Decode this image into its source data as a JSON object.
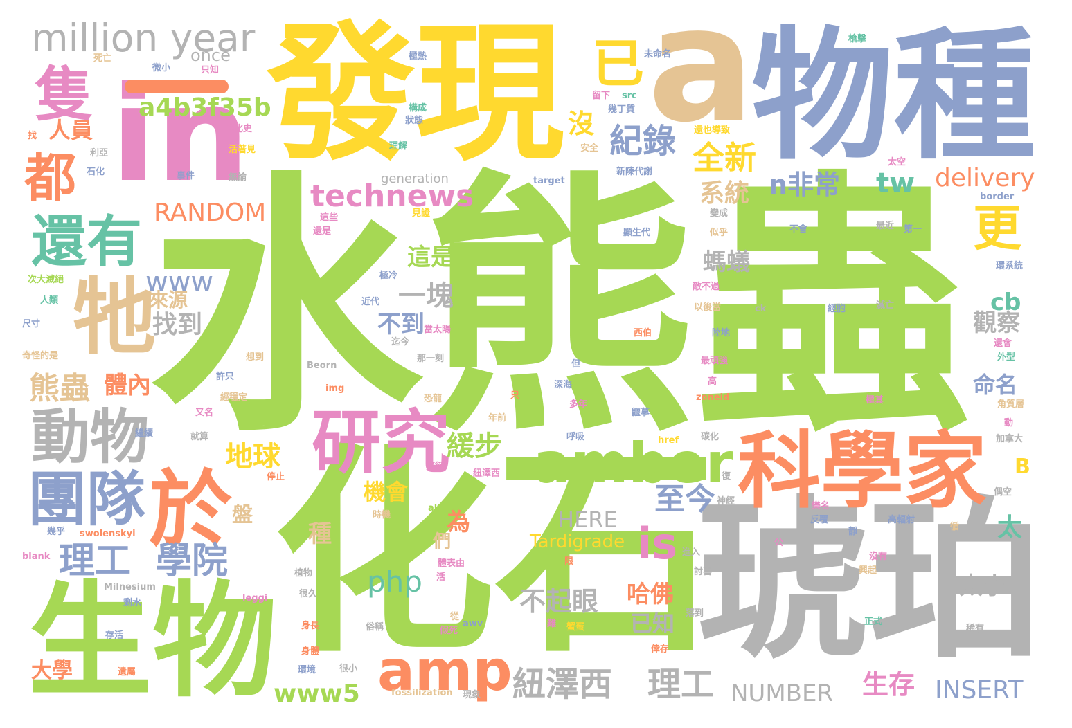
{
  "palette": {
    "green": "#a6d854",
    "gray": "#b3b3b3",
    "yellow": "#ffd92f",
    "tan": "#e5c494",
    "blue": "#8da0cb",
    "pink": "#e78ac3",
    "orange": "#fc8d62",
    "teal": "#66c2a5"
  },
  "words": [
    {
      "text": "水熊蟲",
      "color": "green",
      "weight": 1.0
    },
    {
      "text": "化石",
      "color": "green",
      "weight": 0.8
    },
    {
      "text": "琥珀",
      "color": "gray",
      "weight": 0.6
    },
    {
      "text": "發現",
      "color": "yellow",
      "weight": 0.55
    },
    {
      "text": "a",
      "color": "tan",
      "weight": 0.55
    },
    {
      "text": "物種",
      "color": "blue",
      "weight": 0.48
    },
    {
      "text": "in",
      "color": "pink",
      "weight": 0.5
    },
    {
      "text": "生物",
      "color": "green",
      "weight": 0.4
    },
    {
      "text": "科學家",
      "color": "orange",
      "weight": 0.3
    },
    {
      "text": "於",
      "color": "orange",
      "weight": 0.3
    },
    {
      "text": "牠",
      "color": "tan",
      "weight": 0.3
    },
    {
      "text": "研究",
      "color": "pink",
      "weight": 0.25
    },
    {
      "text": "amber",
      "color": "green",
      "weight": 0.2
    },
    {
      "text": "amp",
      "color": "orange",
      "weight": 0.2
    },
    {
      "text": "動物",
      "color": "gray",
      "weight": 0.2
    },
    {
      "text": "團隊",
      "color": "blue",
      "weight": 0.2
    },
    {
      "text": "都",
      "color": "orange",
      "weight": 0.2
    },
    {
      "text": "隻",
      "color": "pink",
      "weight": 0.2
    },
    {
      "text": "還有",
      "color": "teal",
      "weight": 0.2
    },
    {
      "text": "million year",
      "color": "gray",
      "weight": 0.17
    },
    {
      "text": "已",
      "color": "yellow",
      "weight": 0.2
    },
    {
      "text": "更",
      "color": "yellow",
      "weight": 0.17
    },
    {
      "text": "is",
      "color": "pink",
      "weight": 0.15
    },
    {
      "text": "technews",
      "color": "pink",
      "weight": 0.14
    },
    {
      "text": "a4b3f35b",
      "color": "green",
      "weight": 0.12
    },
    {
      "text": "RANDOM",
      "color": "orange",
      "weight": 0.12
    },
    {
      "text": "www",
      "color": "blue",
      "weight": 0.12
    },
    {
      "text": "紀錄",
      "color": "blue",
      "weight": 0.12
    },
    {
      "text": "全新",
      "color": "yellow",
      "weight": 0.12
    },
    {
      "text": "沒",
      "color": "yellow",
      "weight": 0.1
    },
    {
      "text": "人員",
      "color": "orange",
      "weight": 0.1
    },
    {
      "text": "n非常",
      "color": "blue",
      "weight": 0.12
    },
    {
      "text": "tw",
      "color": "teal",
      "weight": 0.12
    },
    {
      "text": "delivery",
      "color": "orange",
      "weight": 0.12
    },
    {
      "text": "系統",
      "color": "tan",
      "weight": 0.1
    },
    {
      "text": "螞蟻",
      "color": "gray",
      "weight": 0.1
    },
    {
      "text": "這是",
      "color": "green",
      "weight": 0.08
    },
    {
      "text": "一塊",
      "color": "gray",
      "weight": 0.1
    },
    {
      "text": "找到",
      "color": "gray",
      "weight": 0.1
    },
    {
      "text": "來源",
      "color": "tan",
      "weight": 0.08
    },
    {
      "text": "不到",
      "color": "blue",
      "weight": 0.08
    },
    {
      "text": "熊蟲",
      "color": "tan",
      "weight": 0.12
    },
    {
      "text": "體內",
      "color": "orange",
      "weight": 0.1
    },
    {
      "text": "地球",
      "color": "yellow",
      "weight": 0.12
    },
    {
      "text": "緩步",
      "color": "green",
      "weight": 0.12
    },
    {
      "text": "理工",
      "color": "blue",
      "weight": 0.14
    },
    {
      "text": "學院",
      "color": "blue",
      "weight": 0.14
    },
    {
      "text": "至今",
      "color": "blue",
      "weight": 0.12
    },
    {
      "text": "php",
      "color": "teal",
      "weight": 0.12
    },
    {
      "text": "機會",
      "color": "yellow",
      "weight": 0.1
    },
    {
      "text": "HERE",
      "color": "gray",
      "weight": 0.1
    },
    {
      "text": "Tardigrade",
      "color": "yellow",
      "weight": 0.1
    },
    {
      "text": "為",
      "color": "orange",
      "weight": 0.1
    },
    {
      "text": "們",
      "color": "tan",
      "weight": 0.08
    },
    {
      "text": "種",
      "color": "tan",
      "weight": 0.1
    },
    {
      "text": "盤",
      "color": "tan",
      "weight": 0.1
    },
    {
      "text": "不起眼",
      "color": "gray",
      "weight": 0.12
    },
    {
      "text": "哈佛",
      "color": "orange",
      "weight": 0.1
    },
    {
      "text": "已知",
      "color": "gray",
      "weight": 0.1
    },
    {
      "text": "太小",
      "color": "gray",
      "weight": 0.1
    },
    {
      "text": "太",
      "color": "teal",
      "weight": 0.1
    },
    {
      "text": "觀察",
      "color": "gray",
      "weight": 0.1
    },
    {
      "text": "命名",
      "color": "blue",
      "weight": 0.1
    },
    {
      "text": "cb",
      "color": "teal",
      "weight": 0.1
    },
    {
      "text": "B",
      "color": "yellow",
      "weight": 0.1
    },
    {
      "text": "www5",
      "color": "green",
      "weight": 0.12
    },
    {
      "text": "紐澤西",
      "color": "gray",
      "weight": 0.14
    },
    {
      "text": "理工",
      "color": "gray",
      "weight": 0.14
    },
    {
      "text": "NUMBER",
      "color": "gray",
      "weight": 0.12
    },
    {
      "text": "生存",
      "color": "pink",
      "weight": 0.12
    },
    {
      "text": "INSERT",
      "color": "blue",
      "weight": 0.12
    },
    {
      "text": "大學",
      "color": "orange",
      "weight": 0.1
    },
    {
      "text": "once",
      "color": "gray",
      "weight": 0.06
    },
    {
      "text": "generation",
      "color": "gray",
      "weight": 0.05
    },
    {
      "text": "死亡",
      "color": "tan",
      "weight": 0.03
    },
    {
      "text": "微小",
      "color": "blue",
      "weight": 0.03
    },
    {
      "text": "只知",
      "color": "pink",
      "weight": 0.03
    },
    {
      "text": "極熱",
      "color": "blue",
      "weight": 0.03
    },
    {
      "text": "未命名",
      "color": "blue",
      "weight": 0.03
    },
    {
      "text": "槍擊",
      "color": "teal",
      "weight": 0.03
    },
    {
      "text": "留下",
      "color": "pink",
      "weight": 0.03
    },
    {
      "text": "src",
      "color": "teal",
      "weight": 0.03
    },
    {
      "text": "幾丁質",
      "color": "blue",
      "weight": 0.03
    },
    {
      "text": "構成",
      "color": "teal",
      "weight": 0.03
    },
    {
      "text": "狀態",
      "color": "blue",
      "weight": 0.03
    },
    {
      "text": "找",
      "color": "orange",
      "weight": 0.03
    },
    {
      "text": "進化史",
      "color": "pink",
      "weight": 0.03
    },
    {
      "text": "活著見",
      "color": "yellow",
      "weight": 0.03
    },
    {
      "text": "理解",
      "color": "teal",
      "weight": 0.03
    },
    {
      "text": "安全",
      "color": "tan",
      "weight": 0.03
    },
    {
      "text": "還也導致",
      "color": "yellow",
      "weight": 0.03
    },
    {
      "text": "太空",
      "color": "pink",
      "weight": 0.03
    },
    {
      "text": "利亞",
      "color": "gray",
      "weight": 0.03
    },
    {
      "text": "石化",
      "color": "blue",
      "weight": 0.03
    },
    {
      "text": "事件",
      "color": "blue",
      "weight": 0.03
    },
    {
      "text": "無論",
      "color": "gray",
      "weight": 0.03
    },
    {
      "text": "新陳代謝",
      "color": "blue",
      "weight": 0.03
    },
    {
      "text": "target",
      "color": "blue",
      "weight": 0.03
    },
    {
      "text": "border",
      "color": "blue",
      "weight": 0.03
    },
    {
      "text": "見證",
      "color": "yellow",
      "weight": 0.03
    },
    {
      "text": "變成",
      "color": "gray",
      "weight": 0.03
    },
    {
      "text": "這些",
      "color": "pink",
      "weight": 0.03
    },
    {
      "text": "還是",
      "color": "pink",
      "weight": 0.03
    },
    {
      "text": "顯生代",
      "color": "blue",
      "weight": 0.03
    },
    {
      "text": "似乎",
      "color": "tan",
      "weight": 0.03
    },
    {
      "text": "不會",
      "color": "blue",
      "weight": 0.03
    },
    {
      "text": "最近",
      "color": "gray",
      "weight": 0.03
    },
    {
      "text": "第一",
      "color": "blue",
      "weight": 0.03
    },
    {
      "text": "環系統",
      "color": "blue",
      "weight": 0.03
    },
    {
      "text": "次大滅絕",
      "color": "green",
      "weight": 0.03
    },
    {
      "text": "極冷",
      "color": "blue",
      "weight": 0.03
    },
    {
      "text": "敵不過",
      "color": "pink",
      "weight": 0.03
    },
    {
      "text": "人類",
      "color": "teal",
      "weight": 0.03
    },
    {
      "text": "近代",
      "color": "blue",
      "weight": 0.03
    },
    {
      "text": "以後當",
      "color": "tan",
      "weight": 0.03
    },
    {
      "text": "ck",
      "color": "gray",
      "weight": 0.03
    },
    {
      "text": "經胞",
      "color": "blue",
      "weight": 0.03
    },
    {
      "text": "滅亡",
      "color": "gray",
      "weight": 0.03
    },
    {
      "text": "尺寸",
      "color": "blue",
      "weight": 0.03
    },
    {
      "text": "迄今",
      "color": "gray",
      "weight": 0.03
    },
    {
      "text": "當太陽",
      "color": "pink",
      "weight": 0.03
    },
    {
      "text": "西伯",
      "color": "orange",
      "weight": 0.03
    },
    {
      "text": "陸地",
      "color": "blue",
      "weight": 0.03
    },
    {
      "text": "還會",
      "color": "pink",
      "weight": 0.03
    },
    {
      "text": "外型",
      "color": "teal",
      "weight": 0.03
    },
    {
      "text": "奇怪的是",
      "color": "tan",
      "weight": 0.03
    },
    {
      "text": "想到",
      "color": "tan",
      "weight": 0.03
    },
    {
      "text": "那一刻",
      "color": "gray",
      "weight": 0.03
    },
    {
      "text": "Beorn",
      "color": "gray",
      "weight": 0.03
    },
    {
      "text": "但",
      "color": "blue",
      "weight": 0.03
    },
    {
      "text": "最頑強",
      "color": "pink",
      "weight": 0.03
    },
    {
      "text": "許只",
      "color": "blue",
      "weight": 0.03
    },
    {
      "text": "深海",
      "color": "blue",
      "weight": 0.03
    },
    {
      "text": "高",
      "color": "pink",
      "weight": 0.03
    },
    {
      "text": "img",
      "color": "orange",
      "weight": 0.03
    },
    {
      "text": "只",
      "color": "orange",
      "weight": 0.03
    },
    {
      "text": "zoneid",
      "color": "orange",
      "weight": 0.03
    },
    {
      "text": "經穩定",
      "color": "tan",
      "weight": 0.03
    },
    {
      "text": "又名",
      "color": "pink",
      "weight": 0.03
    },
    {
      "text": "恐龍",
      "color": "tan",
      "weight": 0.03
    },
    {
      "text": "年前",
      "color": "tan",
      "weight": 0.03
    },
    {
      "text": "多年",
      "color": "pink",
      "weight": 0.03
    },
    {
      "text": "鼴摹",
      "color": "blue",
      "weight": 0.03
    },
    {
      "text": "極其",
      "color": "pink",
      "weight": 0.03
    },
    {
      "text": "角質層",
      "color": "tan",
      "weight": 0.03
    },
    {
      "text": "繼續",
      "color": "blue",
      "weight": 0.03
    },
    {
      "text": "動",
      "color": "pink",
      "weight": 0.03
    },
    {
      "text": "就算",
      "color": "gray",
      "weight": 0.03
    },
    {
      "text": "呼吸",
      "color": "blue",
      "weight": 0.03
    },
    {
      "text": "href",
      "color": "yellow",
      "weight": 0.03
    },
    {
      "text": "碳化",
      "color": "gray",
      "weight": 0.03
    },
    {
      "text": "加拿大",
      "color": "gray",
      "weight": 0.03
    },
    {
      "text": "停止",
      "color": "orange",
      "weight": 0.03
    },
    {
      "text": "繁衍",
      "color": "pink",
      "weight": 0.03
    },
    {
      "text": "紐澤西",
      "color": "pink",
      "weight": 0.03
    },
    {
      "text": "復",
      "color": "gray",
      "weight": 0.03
    },
    {
      "text": "偶空",
      "color": "gray",
      "weight": 0.03
    },
    {
      "text": "alt",
      "color": "green",
      "weight": 0.03
    },
    {
      "text": "時機",
      "color": "tan",
      "weight": 0.03
    },
    {
      "text": "神經",
      "color": "gray",
      "weight": 0.03
    },
    {
      "text": "樂名",
      "color": "pink",
      "weight": 0.03
    },
    {
      "text": "反覆",
      "color": "blue",
      "weight": 0.03
    },
    {
      "text": "高輻射",
      "color": "blue",
      "weight": 0.03
    },
    {
      "text": "循",
      "color": "tan",
      "weight": 0.03
    },
    {
      "text": "靜",
      "color": "blue",
      "weight": 0.03
    },
    {
      "text": "幾乎",
      "color": "blue",
      "weight": 0.03
    },
    {
      "text": "swolenskyi",
      "color": "orange",
      "weight": 0.03
    },
    {
      "text": "進入",
      "color": "gray",
      "weight": 0.03
    },
    {
      "text": "公",
      "color": "pink",
      "weight": 0.03
    },
    {
      "text": "blank",
      "color": "pink",
      "weight": 0.03
    },
    {
      "text": "植物",
      "color": "gray",
      "weight": 0.03
    },
    {
      "text": "體表由",
      "color": "pink",
      "weight": 0.03
    },
    {
      "text": "限",
      "color": "orange",
      "weight": 0.03
    },
    {
      "text": "討喜",
      "color": "gray",
      "weight": 0.03
    },
    {
      "text": "沒有",
      "color": "pink",
      "weight": 0.03
    },
    {
      "text": "興起",
      "color": "tan",
      "weight": 0.03
    },
    {
      "text": "Milnesium",
      "color": "gray",
      "weight": 0.03
    },
    {
      "text": "很久",
      "color": "gray",
      "weight": 0.03
    },
    {
      "text": "活",
      "color": "pink",
      "weight": 0.03
    },
    {
      "text": "剩水",
      "color": "blue",
      "weight": 0.03
    },
    {
      "text": "leggi",
      "color": "pink",
      "weight": 0.03
    },
    {
      "text": "落到",
      "color": "gray",
      "weight": 0.03
    },
    {
      "text": "從",
      "color": "tan",
      "weight": 0.03
    },
    {
      "text": "身長",
      "color": "orange",
      "weight": 0.03
    },
    {
      "text": "awv",
      "color": "blue",
      "weight": 0.03
    },
    {
      "text": "存活",
      "color": "blue",
      "weight": 0.03
    },
    {
      "text": "俗稱",
      "color": "gray",
      "weight": 0.03
    },
    {
      "text": "假死",
      "color": "pink",
      "weight": 0.03
    },
    {
      "text": "難",
      "color": "pink",
      "weight": 0.03
    },
    {
      "text": "蟹蛋",
      "color": "yellow",
      "weight": 0.03
    },
    {
      "text": "正式",
      "color": "teal",
      "weight": 0.03
    },
    {
      "text": "稀有",
      "color": "gray",
      "weight": 0.03
    },
    {
      "text": "身體",
      "color": "orange",
      "weight": 0.03
    },
    {
      "text": "倖存",
      "color": "orange",
      "weight": 0.03
    },
    {
      "text": "環境",
      "color": "blue",
      "weight": 0.03
    },
    {
      "text": "很小",
      "color": "gray",
      "weight": 0.03
    },
    {
      "text": "遺屬",
      "color": "orange",
      "weight": 0.03
    },
    {
      "text": "fossilization",
      "color": "tan",
      "weight": 0.03
    },
    {
      "text": "現象",
      "color": "gray",
      "weight": 0.03
    }
  ]
}
